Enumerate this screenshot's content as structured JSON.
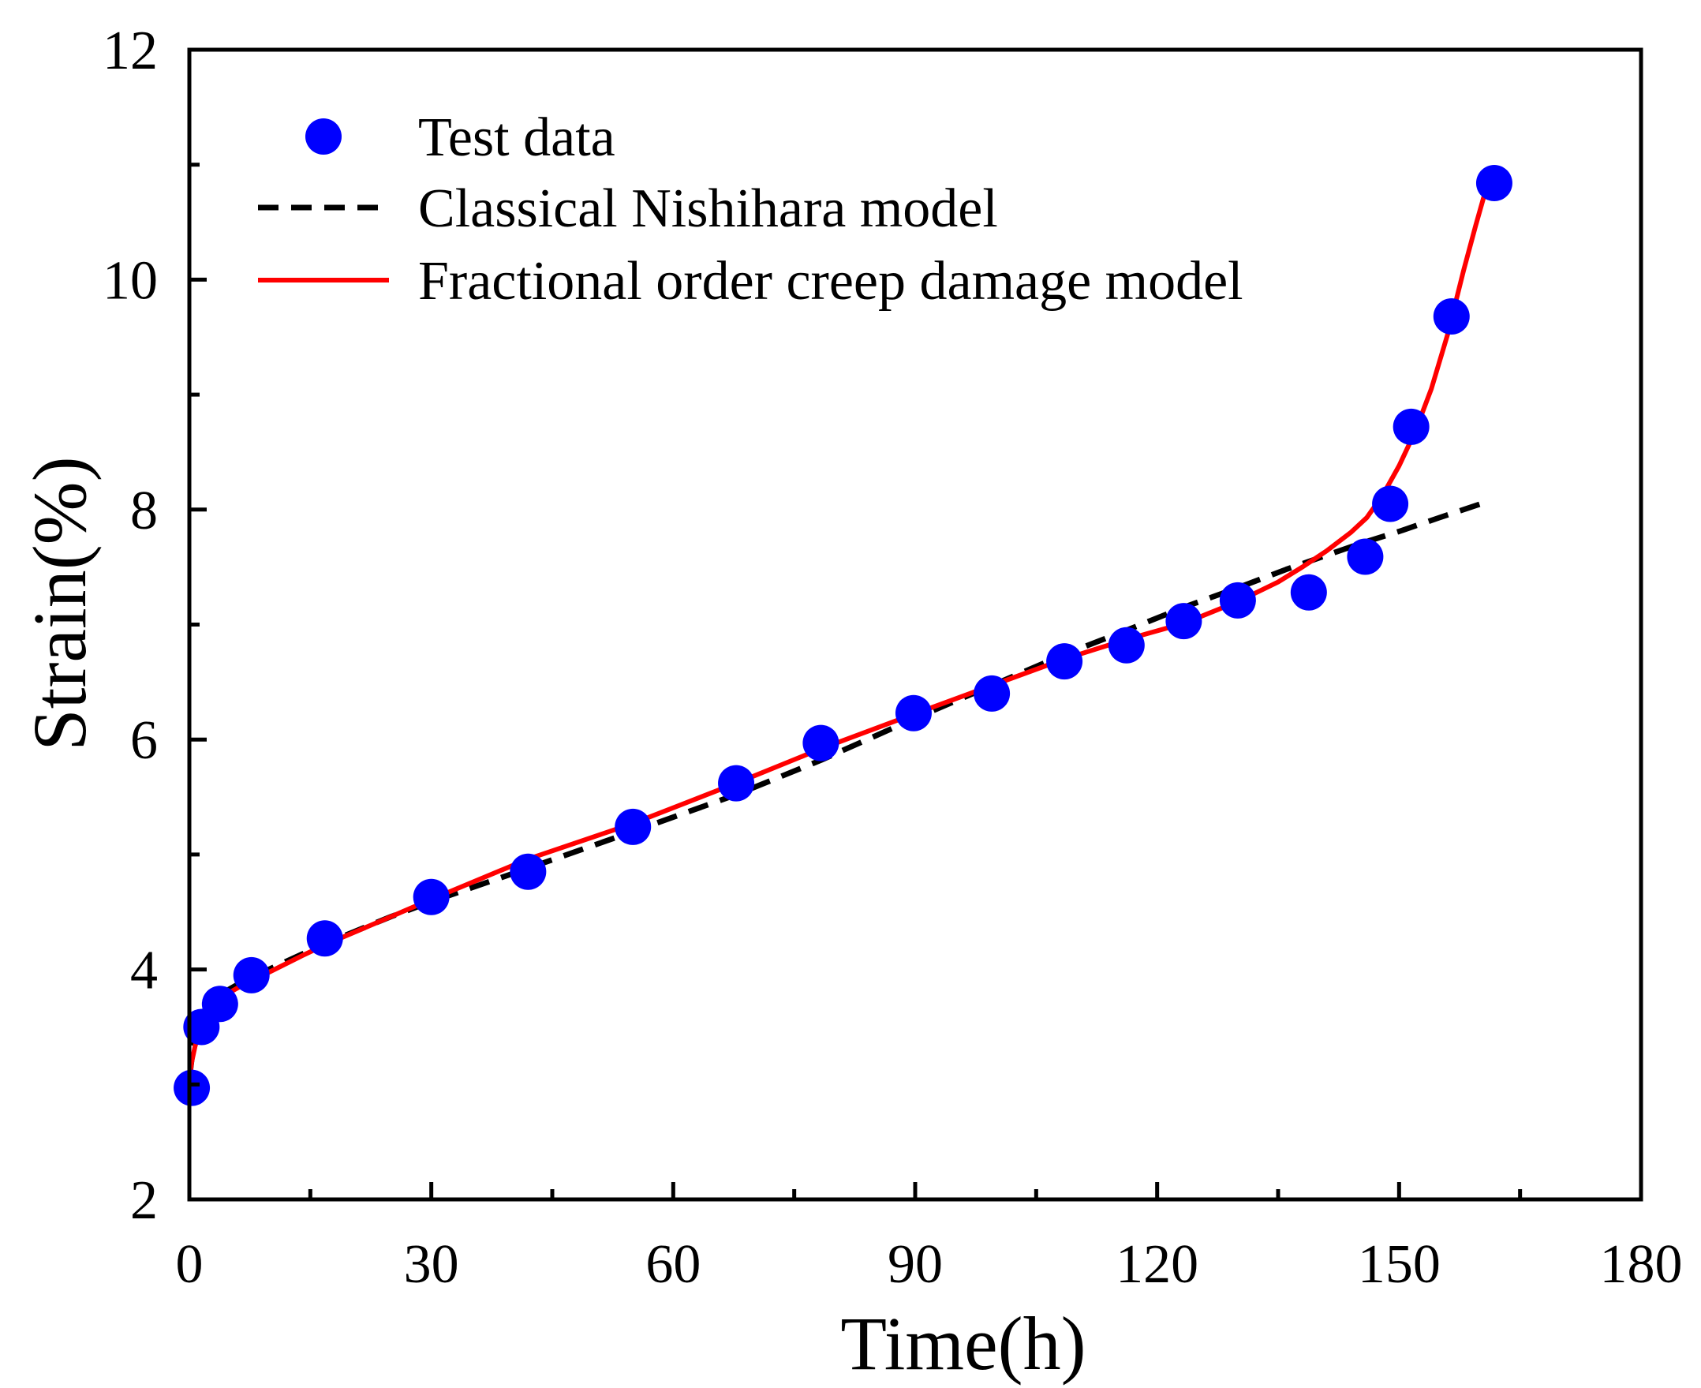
{
  "chart_data": {
    "type": "scatter",
    "title": "",
    "xlabel": "Time(h)",
    "ylabel": "Strain(%)",
    "xlim": [
      0,
      180
    ],
    "ylim": [
      2,
      12
    ],
    "x_ticks": [
      0,
      30,
      60,
      90,
      120,
      150,
      180
    ],
    "y_ticks": [
      2,
      4,
      6,
      8,
      10,
      12
    ],
    "x_minor_ticks": [
      15,
      45,
      75,
      105,
      135,
      165
    ],
    "y_minor_ticks": [
      3,
      5,
      7,
      9,
      11
    ],
    "grid": false,
    "legend_position": "top-left",
    "series": [
      {
        "name": "Test data",
        "kind": "scatter",
        "color": "#0000FF",
        "x": [
          0.3,
          1.5,
          3.8,
          7.7,
          16.8,
          30.0,
          42.0,
          55.0,
          67.8,
          78.3,
          89.8,
          99.5,
          108.5,
          116.2,
          123.3,
          130.0,
          138.8,
          145.8,
          148.9,
          151.5,
          156.5,
          161.8
        ],
        "y": [
          2.97,
          3.5,
          3.7,
          3.95,
          4.27,
          4.63,
          4.85,
          5.24,
          5.62,
          5.97,
          6.23,
          6.4,
          6.68,
          6.82,
          7.03,
          7.21,
          7.28,
          7.59,
          8.05,
          8.72,
          9.68,
          10.84
        ]
      },
      {
        "name": "Classical Nishihara model",
        "kind": "line",
        "style": "dashed",
        "color": "#000000",
        "x": [
          0,
          0.5,
          1,
          2,
          3,
          4,
          6,
          8,
          12,
          17,
          25,
          30,
          42,
          55,
          67.8,
          78.3,
          89.8,
          99.5,
          108.5,
          116.2,
          123.3,
          130.0,
          136.0,
          145.0,
          150.0,
          155.0,
          161.0
        ],
        "y": [
          3.05,
          3.33,
          3.5,
          3.66,
          3.74,
          3.79,
          3.87,
          3.94,
          4.07,
          4.23,
          4.46,
          4.59,
          4.88,
          5.2,
          5.52,
          5.82,
          6.18,
          6.47,
          6.74,
          6.95,
          7.15,
          7.32,
          7.48,
          7.7,
          7.81,
          7.93,
          8.07
        ]
      },
      {
        "name": "Fractional order creep damage model",
        "kind": "line",
        "style": "solid",
        "color": "#FF0000",
        "x": [
          0,
          0.3,
          0.7,
          1.2,
          2,
          3,
          4,
          5,
          7,
          10,
          14,
          17,
          25,
          30,
          42,
          55,
          67.8,
          78.3,
          89.8,
          99.5,
          108.5,
          116.2,
          123.3,
          130.0,
          135.0,
          138.0,
          141.0,
          144.0,
          146.0,
          148.0,
          150.0,
          152.0,
          154.0,
          156.0,
          158.0,
          159.5,
          160.5,
          161.3,
          161.8
        ],
        "y": [
          3.05,
          3.2,
          3.33,
          3.45,
          3.57,
          3.67,
          3.74,
          3.8,
          3.88,
          3.98,
          4.12,
          4.22,
          4.46,
          4.61,
          4.96,
          5.27,
          5.62,
          5.92,
          6.22,
          6.47,
          6.7,
          6.87,
          7.01,
          7.2,
          7.37,
          7.5,
          7.64,
          7.8,
          7.93,
          8.13,
          8.38,
          8.68,
          9.05,
          9.52,
          10.08,
          10.47,
          10.72,
          10.88,
          10.97
        ]
      }
    ]
  }
}
